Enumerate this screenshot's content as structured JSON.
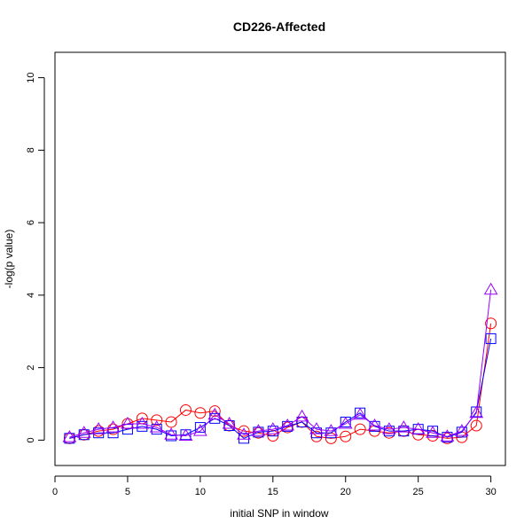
{
  "chart_data": {
    "type": "line",
    "title": "CD226-Affected",
    "xlabel": "initial SNP in window",
    "ylabel": "-log(p value)",
    "xlim": [
      0,
      31
    ],
    "ylim": [
      -0.7,
      10.7
    ],
    "xticks": [
      0,
      5,
      10,
      15,
      20,
      25,
      30
    ],
    "yticks": [
      0,
      2,
      4,
      6,
      8,
      10
    ],
    "grid": false,
    "x": [
      1,
      2,
      3,
      4,
      5,
      6,
      7,
      8,
      9,
      10,
      11,
      12,
      13,
      14,
      15,
      16,
      17,
      18,
      19,
      20,
      21,
      22,
      23,
      24,
      25,
      26,
      27,
      28,
      29,
      30
    ],
    "series": [
      {
        "marker": "circle",
        "color": "#ff0000",
        "values": [
          0.05,
          0.15,
          0.25,
          0.3,
          0.45,
          0.6,
          0.55,
          0.5,
          0.83,
          0.75,
          0.8,
          0.4,
          0.25,
          0.2,
          0.12,
          0.35,
          0.5,
          0.1,
          0.05,
          0.1,
          0.3,
          0.25,
          0.2,
          0.25,
          0.15,
          0.12,
          0.05,
          0.08,
          0.4,
          3.22
        ]
      },
      {
        "marker": "square",
        "color": "#0000ff",
        "values": [
          0.05,
          0.15,
          0.2,
          0.2,
          0.3,
          0.38,
          0.3,
          0.12,
          0.15,
          0.35,
          0.6,
          0.4,
          0.05,
          0.22,
          0.25,
          0.38,
          0.5,
          0.2,
          0.2,
          0.5,
          0.75,
          0.38,
          0.25,
          0.25,
          0.3,
          0.25,
          0.08,
          0.22,
          0.78,
          2.8
        ]
      },
      {
        "marker": "triangle",
        "color": "#9900ff",
        "values": [
          0.08,
          0.2,
          0.3,
          0.35,
          0.45,
          0.45,
          0.35,
          0.15,
          0.12,
          0.25,
          0.7,
          0.45,
          0.15,
          0.25,
          0.3,
          0.4,
          0.65,
          0.3,
          0.25,
          0.45,
          0.7,
          0.4,
          0.3,
          0.35,
          0.3,
          0.2,
          0.1,
          0.25,
          0.75,
          4.15
        ]
      }
    ]
  }
}
